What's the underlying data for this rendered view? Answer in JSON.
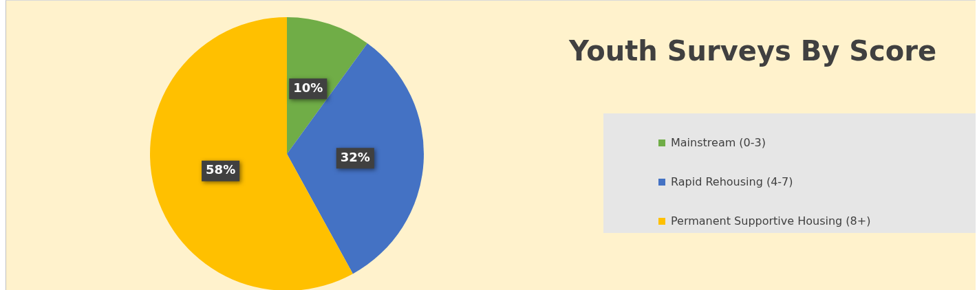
{
  "chart_data": {
    "type": "pie",
    "title": "Youth Surveys By Score",
    "categories": [
      "Mainstream (0-3)",
      "Rapid Rehousing (4-7)",
      "Permanent Supportive Housing (8+)"
    ],
    "values": [
      10,
      32,
      58
    ],
    "colors": [
      "#70ad47",
      "#4472c4",
      "#ffc000"
    ],
    "value_labels": [
      "10%",
      "32%",
      "58%"
    ],
    "legend": "right"
  }
}
